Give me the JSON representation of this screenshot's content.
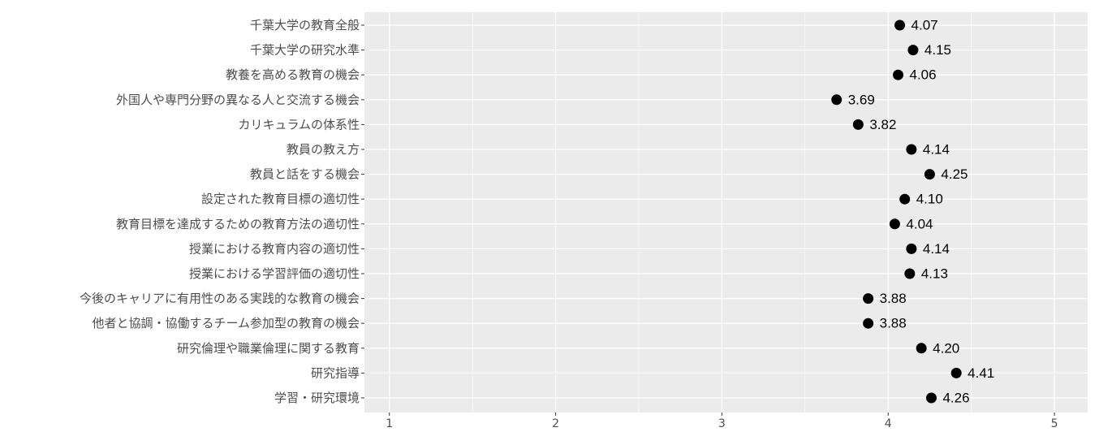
{
  "chart_data": {
    "type": "scatter",
    "title": "",
    "xlabel": "",
    "ylabel": "",
    "xlim": [
      0.85,
      5.2
    ],
    "x_ticks": [
      1,
      2,
      3,
      4,
      5
    ],
    "x_tick_labels": [
      "1",
      "2",
      "3",
      "4",
      "5"
    ],
    "grid": true,
    "legend": "none",
    "colors": {
      "panel_background": "#ebebeb",
      "grid_major": "#ffffff",
      "point": "#000000",
      "axis_text": "#4d4d4d"
    },
    "categories": [
      "千葉大学の教育全般",
      "千葉大学の研究水準",
      "教養を高める教育の機会",
      "外国人や専門分野の異なる人と交流する機会",
      "カリキュラムの体系性",
      "教員の教え方",
      "教員と話をする機会",
      "設定された教育目標の適切性",
      "教育目標を達成するための教育方法の適切性",
      "授業における教育内容の適切性",
      "授業における学習評価の適切性",
      "今後のキャリアに有用性のある実践的な教育の機会",
      "他者と協調・協働するチーム参加型の教育の機会",
      "研究倫理や職業倫理に関する教育",
      "研究指導",
      "学習・研究環境"
    ],
    "values": [
      4.07,
      4.15,
      4.06,
      3.69,
      3.82,
      4.14,
      4.25,
      4.1,
      4.04,
      4.14,
      4.13,
      3.88,
      3.88,
      4.2,
      4.41,
      4.26
    ],
    "value_labels": [
      "4.07",
      "4.15",
      "4.06",
      "3.69",
      "3.82",
      "4.14",
      "4.25",
      "4.10",
      "4.04",
      "4.14",
      "4.13",
      "3.88",
      "3.88",
      "4.20",
      "4.41",
      "4.26"
    ]
  }
}
